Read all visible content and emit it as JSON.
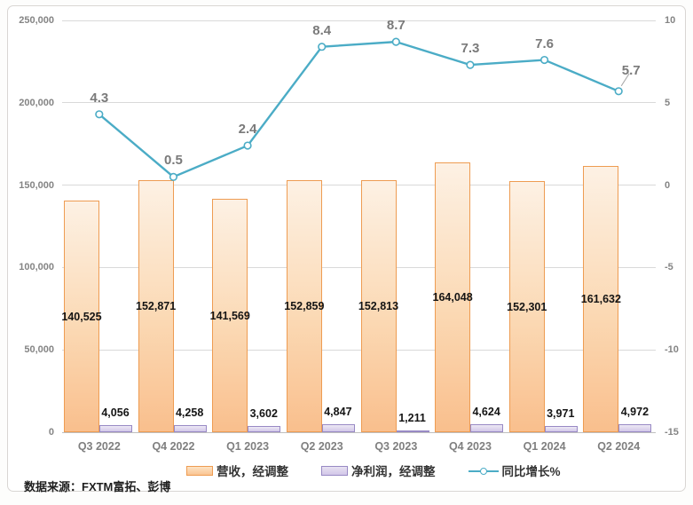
{
  "footer": {
    "source": "数据来源：FXTM富拓、彭博"
  },
  "chart_data": {
    "type": "combo-bar-line",
    "title": "",
    "categories": [
      "Q3 2022",
      "Q4 2022",
      "Q1 2023",
      "Q2 2023",
      "Q3 2023",
      "Q4 2023",
      "Q1 2024",
      "Q2 2024"
    ],
    "series": [
      {
        "name": "营收，经调整",
        "type": "bar",
        "axis": "left",
        "color": "#ee9c52",
        "values": [
          140525,
          152871,
          141569,
          152859,
          152813,
          164048,
          152301,
          161632
        ],
        "labels": [
          "140,525",
          "152,871",
          "141,569",
          "152,859",
          "152,813",
          "164,048",
          "152,301",
          "161,632"
        ]
      },
      {
        "name": "净利润，经调整",
        "type": "bar",
        "axis": "left",
        "color": "#9889c4",
        "values": [
          4056,
          4258,
          3602,
          4847,
          1211,
          4624,
          3971,
          4972
        ],
        "labels": [
          "4,056",
          "4,258",
          "3,602",
          "4,847",
          "1,211",
          "4,624",
          "3,971",
          "4,972"
        ]
      },
      {
        "name": "同比增长%",
        "type": "line",
        "axis": "right",
        "color": "#4bacc6",
        "values": [
          4.3,
          0.5,
          2.4,
          8.4,
          8.7,
          7.3,
          7.6,
          5.7
        ],
        "labels": [
          "4.3",
          "0.5",
          "2.4",
          "8.4",
          "8.7",
          "7.3",
          "7.6",
          "5.7"
        ]
      }
    ],
    "left_axis": {
      "min": 0,
      "max": 250000,
      "tick_values": [
        250000,
        200000,
        150000,
        100000,
        50000,
        0
      ],
      "tick_labels": [
        "250,000",
        "200,000",
        "150,000",
        "100,000",
        "50,000",
        "0"
      ]
    },
    "right_axis": {
      "min": -15,
      "max": 10,
      "tick_values": [
        10,
        5,
        0,
        -5,
        -10,
        -15
      ],
      "tick_labels": [
        "10",
        "5",
        "0",
        "-5",
        "-10",
        "-15"
      ]
    },
    "legend_position": "bottom",
    "grid": "horizontal"
  }
}
